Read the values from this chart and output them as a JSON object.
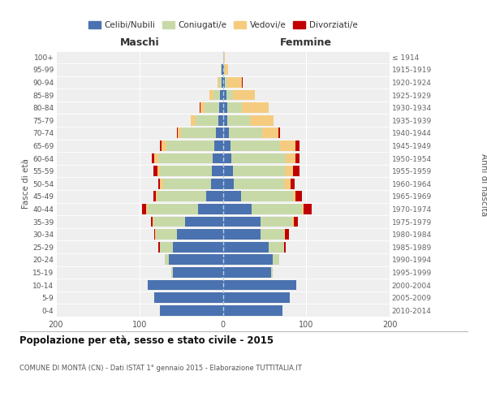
{
  "age_groups": [
    "0-4",
    "5-9",
    "10-14",
    "15-19",
    "20-24",
    "25-29",
    "30-34",
    "35-39",
    "40-44",
    "45-49",
    "50-54",
    "55-59",
    "60-64",
    "65-69",
    "70-74",
    "75-79",
    "80-84",
    "85-89",
    "90-94",
    "95-99",
    "100+"
  ],
  "birth_years": [
    "2010-2014",
    "2005-2009",
    "2000-2004",
    "1995-1999",
    "1990-1994",
    "1985-1989",
    "1980-1984",
    "1975-1979",
    "1970-1974",
    "1965-1969",
    "1960-1964",
    "1955-1959",
    "1950-1954",
    "1945-1949",
    "1940-1944",
    "1935-1939",
    "1930-1934",
    "1925-1929",
    "1920-1924",
    "1915-1919",
    "≤ 1914"
  ],
  "colors": {
    "celibi": "#4b72b0",
    "coniugati": "#c8d9a8",
    "vedovi": "#f5cc7f",
    "divorziati": "#c00000"
  },
  "maschi": {
    "celibi": [
      75,
      82,
      90,
      60,
      65,
      60,
      55,
      45,
      30,
      20,
      14,
      13,
      12,
      10,
      8,
      5,
      4,
      3,
      1,
      1,
      0
    ],
    "coniugati": [
      0,
      0,
      0,
      2,
      5,
      15,
      25,
      38,
      60,
      58,
      58,
      62,
      65,
      58,
      42,
      28,
      18,
      8,
      3,
      1,
      0
    ],
    "vedovi": [
      0,
      0,
      0,
      0,
      0,
      0,
      1,
      1,
      2,
      2,
      3,
      3,
      5,
      5,
      4,
      5,
      5,
      5,
      2,
      0,
      0
    ],
    "divorziati": [
      0,
      0,
      0,
      0,
      0,
      2,
      1,
      2,
      5,
      3,
      2,
      5,
      3,
      2,
      1,
      0,
      1,
      0,
      0,
      0,
      0
    ]
  },
  "femmine": {
    "celibi": [
      72,
      80,
      88,
      58,
      60,
      55,
      45,
      45,
      35,
      22,
      13,
      12,
      10,
      9,
      7,
      5,
      5,
      4,
      2,
      1,
      0
    ],
    "coniugati": [
      0,
      0,
      0,
      2,
      8,
      18,
      28,
      38,
      60,
      62,
      60,
      62,
      65,
      60,
      40,
      28,
      18,
      8,
      3,
      1,
      0
    ],
    "vedovi": [
      0,
      0,
      0,
      0,
      0,
      0,
      1,
      2,
      2,
      3,
      8,
      10,
      12,
      18,
      20,
      28,
      32,
      26,
      18,
      4,
      2
    ],
    "divorziati": [
      0,
      0,
      0,
      0,
      0,
      2,
      5,
      5,
      10,
      8,
      5,
      8,
      5,
      5,
      2,
      0,
      0,
      0,
      1,
      0,
      0
    ]
  },
  "title": "Popolazione per età, sesso e stato civile - 2015",
  "subtitle": "COMUNE DI MONTÀ (CN) - Dati ISTAT 1° gennaio 2015 - Elaborazione TUTTITALIA.IT",
  "xlabel_left": "Maschi",
  "xlabel_right": "Femmine",
  "ylabel_left": "Fasce di età",
  "ylabel_right": "Anni di nascita",
  "legend_labels": [
    "Celibi/Nubili",
    "Coniugati/e",
    "Vedovi/e",
    "Divorziati/e"
  ],
  "bg_color": "#efefef",
  "xlim": 200
}
